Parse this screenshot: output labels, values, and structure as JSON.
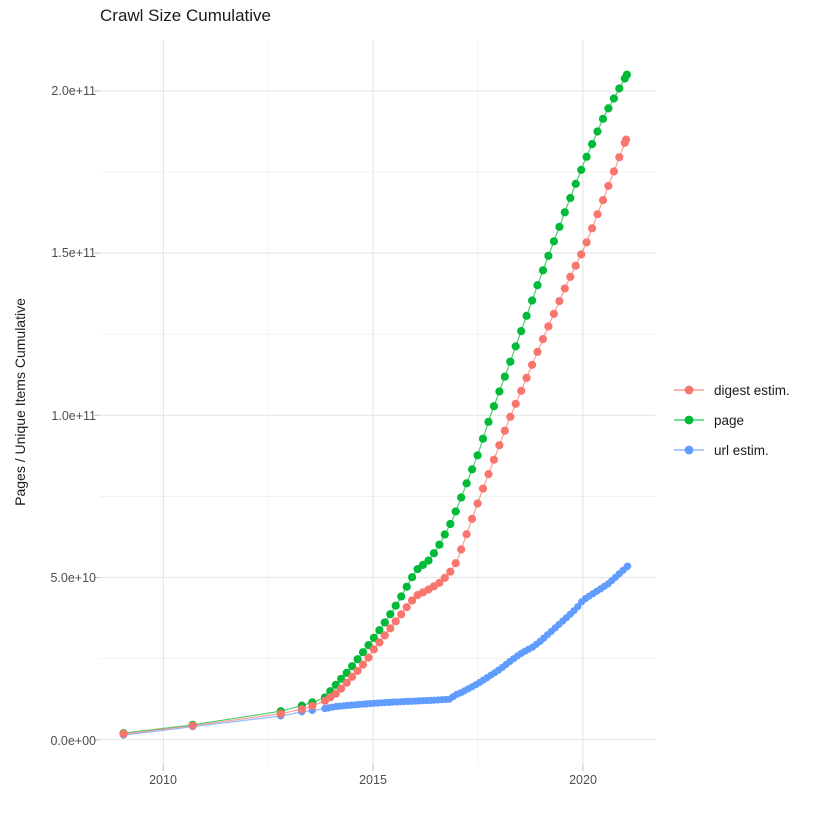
{
  "chart_data": {
    "type": "scatter",
    "mode": "lines+markers",
    "title": "Crawl Size Cumulative",
    "xlabel": "",
    "ylabel": "Pages / Unique Items Cumulative",
    "legend_position": "right",
    "grid": true,
    "x_range": [
      2008.49,
      2021.72
    ],
    "y_range": [
      -7800000000.0,
      215700000000.0
    ],
    "x_ticks": [
      {
        "value": 2010,
        "label": "2010"
      },
      {
        "value": 2015,
        "label": "2015"
      },
      {
        "value": 2020,
        "label": "2020"
      }
    ],
    "x_minor": [
      2012.5,
      2017.5
    ],
    "y_ticks": [
      {
        "value": 200000000000.0,
        "label": "2.0e+11"
      },
      {
        "value": 150000000000.0,
        "label": "1.5e+11"
      },
      {
        "value": 100000000000.0,
        "label": "1.0e+11"
      },
      {
        "value": 50000000000.0,
        "label": "5.0e+10"
      },
      {
        "value": 0,
        "label": "0.0e+00"
      }
    ],
    "y_minor": [
      25000000000.0,
      75000000000.0,
      125000000000.0,
      175000000000.0
    ],
    "colors": {
      "major_grid": "#e7e7e7",
      "minor_grid": "#f0f0f0",
      "tick": "#c9c9c9"
    },
    "series": [
      {
        "name": "digest estim.",
        "color": "#F8766D",
        "marker_radius": 4.1,
        "dense_from": 2013.85,
        "dot_spacing_years": 0.13,
        "points": [
          [
            2009.05,
            1800000000.0
          ],
          [
            2010.7,
            4300000000.0
          ],
          [
            2012.8,
            8000000000.0
          ],
          [
            2013.3,
            9400000000.0
          ],
          [
            2013.55,
            10400000000.0
          ],
          [
            2013.85,
            12000000000.0
          ],
          [
            2014.15,
            14500000000.0
          ],
          [
            2014.4,
            18000000000.0
          ],
          [
            2014.65,
            21500000000.0
          ],
          [
            2014.85,
            24500000000.0
          ],
          [
            2015.0,
            27500000000.0
          ],
          [
            2015.3,
            32500000000.0
          ],
          [
            2015.6,
            37500000000.0
          ],
          [
            2015.9,
            42500000000.0
          ],
          [
            2016.05,
            44500000000.0
          ],
          [
            2016.35,
            46500000000.0
          ],
          [
            2016.6,
            48500000000.0
          ],
          [
            2016.8,
            51000000000.0
          ],
          [
            2017.0,
            55000000000.0
          ],
          [
            2017.55,
            75000000000.0
          ],
          [
            2018.22,
            98000000000.0
          ],
          [
            2019.0,
            122000000000.0
          ],
          [
            2019.6,
            140000000000.0
          ],
          [
            2020.05,
            152000000000.0
          ],
          [
            2020.5,
            167000000000.0
          ],
          [
            2021.03,
            185000000000.0
          ]
        ]
      },
      {
        "name": "page",
        "color": "#00BA38",
        "marker_radius": 4.1,
        "dense_from": 2013.85,
        "dot_spacing_years": 0.13,
        "points": [
          [
            2009.05,
            2000000000.0
          ],
          [
            2010.7,
            4600000000.0
          ],
          [
            2012.8,
            8800000000.0
          ],
          [
            2013.3,
            10500000000.0
          ],
          [
            2013.55,
            11500000000.0
          ],
          [
            2013.85,
            13000000000.0
          ],
          [
            2014.15,
            17500000000.0
          ],
          [
            2014.4,
            21000000000.0
          ],
          [
            2014.6,
            24300000000.0
          ],
          [
            2014.85,
            28500000000.0
          ],
          [
            2015.0,
            31000000000.0
          ],
          [
            2015.3,
            36500000000.0
          ],
          [
            2015.6,
            42500000000.0
          ],
          [
            2015.9,
            49500000000.0
          ],
          [
            2016.05,
            52500000000.0
          ],
          [
            2016.35,
            55500000000.0
          ],
          [
            2016.6,
            60500000000.0
          ],
          [
            2016.9,
            68000000000.0
          ],
          [
            2017.5,
            88000000000.0
          ],
          [
            2017.8,
            100000000000.0
          ],
          [
            2018.2,
            114000000000.0
          ],
          [
            2019.0,
            143000000000.0
          ],
          [
            2019.64,
            165000000000.0
          ],
          [
            2020.0,
            177000000000.0
          ],
          [
            2020.5,
            192000000000.0
          ],
          [
            2021.05,
            205000000000.0
          ]
        ]
      },
      {
        "name": "url estim.",
        "color": "#619CFF",
        "marker_radius": 3.6,
        "dense_from": 2013.85,
        "dot_spacing_years": 0.09,
        "points": [
          [
            2009.05,
            1400000000.0
          ],
          [
            2010.7,
            4000000000.0
          ],
          [
            2012.8,
            7300000000.0
          ],
          [
            2013.3,
            8600000000.0
          ],
          [
            2013.55,
            9000000000.0
          ],
          [
            2013.85,
            9600000000.0
          ],
          [
            2014.1,
            10200000000.0
          ],
          [
            2014.5,
            10700000000.0
          ],
          [
            2015.0,
            11200000000.0
          ],
          [
            2015.5,
            11600000000.0
          ],
          [
            2016.0,
            11900000000.0
          ],
          [
            2016.5,
            12200000000.0
          ],
          [
            2016.85,
            12500000000.0
          ],
          [
            2016.95,
            13800000000.0
          ],
          [
            2017.1,
            14500000000.0
          ],
          [
            2017.5,
            17300000000.0
          ],
          [
            2018.0,
            21500000000.0
          ],
          [
            2018.3,
            24500000000.0
          ],
          [
            2018.55,
            26800000000.0
          ],
          [
            2018.8,
            28500000000.0
          ],
          [
            2019.0,
            30500000000.0
          ],
          [
            2019.3,
            34000000000.0
          ],
          [
            2019.6,
            37500000000.0
          ],
          [
            2019.85,
            40500000000.0
          ],
          [
            2020.0,
            43000000000.0
          ],
          [
            2020.3,
            45500000000.0
          ],
          [
            2020.6,
            48000000000.0
          ],
          [
            2021.07,
            53500000000.0
          ]
        ]
      }
    ]
  },
  "legend": {
    "items": [
      {
        "label": "digest estim.",
        "color": "#F8766D"
      },
      {
        "label": "page",
        "color": "#00BA38"
      },
      {
        "label": "url estim.",
        "color": "#619CFF"
      }
    ]
  }
}
